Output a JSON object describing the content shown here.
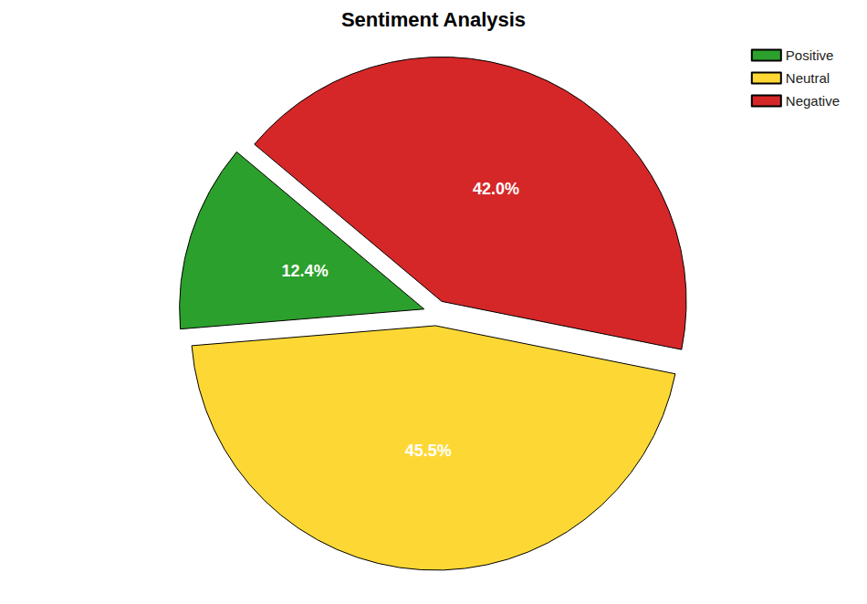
{
  "chart_data": {
    "type": "pie",
    "title": "Sentiment Analysis",
    "categories": [
      "Positive",
      "Neutral",
      "Negative"
    ],
    "values": [
      12.4,
      45.5,
      42.0
    ],
    "value_labels": [
      "12.4%",
      "45.5%",
      "42.0%"
    ],
    "colors": [
      "#2ca02c",
      "#fdd835",
      "#d62728"
    ],
    "legend": "upper right",
    "data_labels": true
  }
}
